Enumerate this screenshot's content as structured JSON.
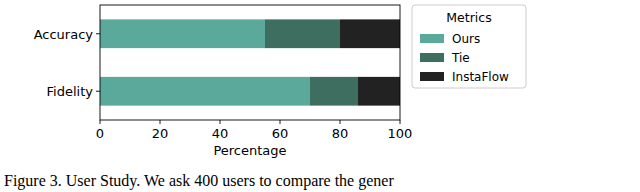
{
  "chart_data": {
    "type": "bar",
    "orientation": "horizontal",
    "stacked": true,
    "categories": [
      "Accuracy",
      "Fidelity"
    ],
    "series": [
      {
        "name": "Ours",
        "color": "#5aa99a",
        "values": [
          55,
          70
        ]
      },
      {
        "name": "Tie",
        "color": "#3e6e5f",
        "values": [
          25,
          16
        ]
      },
      {
        "name": "InstaFlow",
        "color": "#222222",
        "values": [
          20,
          14
        ]
      }
    ],
    "xlabel": "Percentage",
    "legend_title": "Metrics",
    "legend": "right",
    "xlim": [
      0,
      100
    ],
    "xticks": [
      0,
      20,
      40,
      60,
      80,
      100
    ],
    "grid": false,
    "caption": "Figure 3. User Study. We ask 400 users to compare the gener"
  }
}
